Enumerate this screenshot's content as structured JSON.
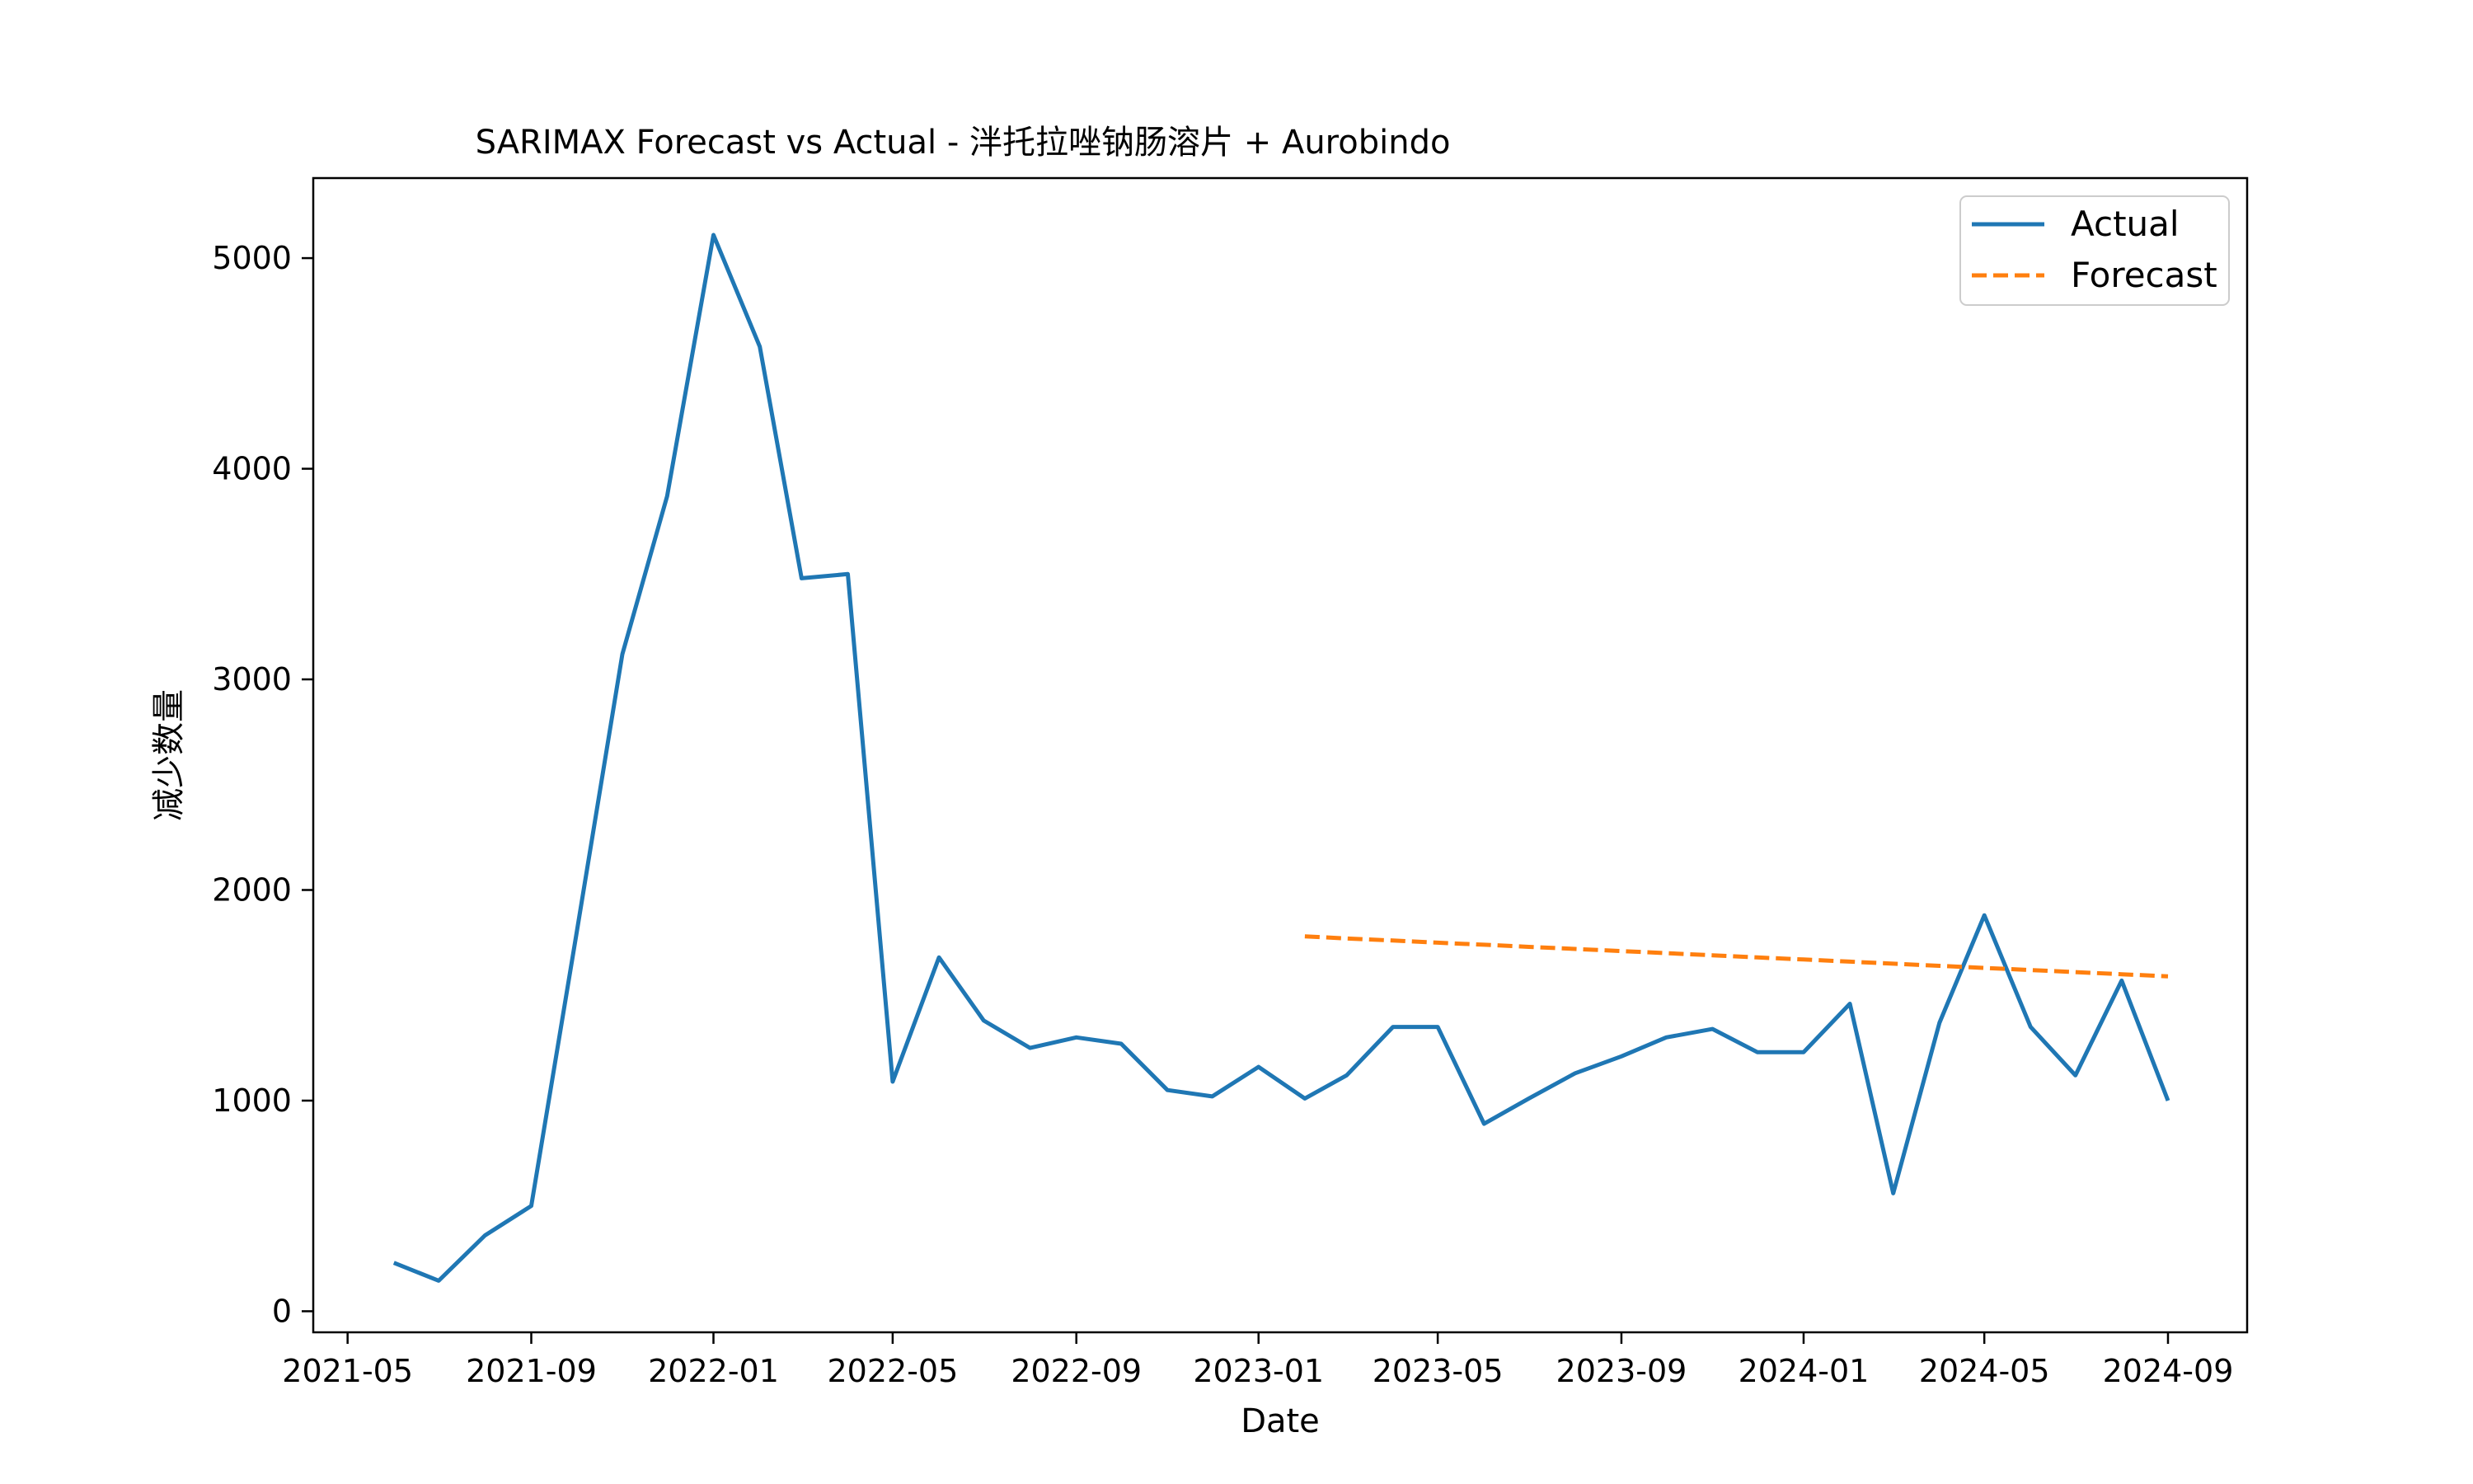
{
  "chart_data": {
    "type": "line",
    "title": "SARIMAX Forecast vs Actual - 泮托拉唑钠肠溶片 + Aurobindo",
    "xlabel": "Date",
    "ylabel": "减少数量",
    "x_ticks": [
      "2021-05",
      "2021-09",
      "2022-01",
      "2022-05",
      "2022-09",
      "2023-01",
      "2023-05",
      "2023-09",
      "2024-01",
      "2024-05",
      "2024-09"
    ],
    "y_ticks": [
      "0",
      "1000",
      "2000",
      "3000",
      "4000",
      "5000"
    ],
    "xlim": [
      "2021-04-08",
      "2024-10-24"
    ],
    "ylim": [
      -100,
      5380
    ],
    "grid": false,
    "legend_position": "upper right",
    "series": [
      {
        "name": "Actual",
        "color": "#1f77b4",
        "style": "solid",
        "x": [
          "2021-06-01",
          "2021-07-01",
          "2021-08-01",
          "2021-09-01",
          "2021-10-01",
          "2021-11-01",
          "2021-12-01",
          "2022-01-01",
          "2022-02-01",
          "2022-03-01",
          "2022-04-01",
          "2022-05-01",
          "2022-06-01",
          "2022-07-01",
          "2022-08-01",
          "2022-09-01",
          "2022-10-01",
          "2022-11-01",
          "2022-12-01",
          "2023-01-01",
          "2023-02-01",
          "2023-03-01",
          "2023-04-01",
          "2023-05-01",
          "2023-06-01",
          "2023-07-01",
          "2023-08-01",
          "2023-09-01",
          "2023-10-01",
          "2023-11-01",
          "2023-12-01",
          "2024-01-01",
          "2024-02-01",
          "2024-03-01",
          "2024-04-01",
          "2024-05-01",
          "2024-06-01",
          "2024-07-01",
          "2024-08-01",
          "2024-09-01"
        ],
        "y": [
          230,
          145,
          360,
          500,
          1780,
          3120,
          3870,
          5110,
          4580,
          3480,
          3500,
          1090,
          1680,
          1380,
          1250,
          1300,
          1270,
          1050,
          1020,
          1160,
          1010,
          1120,
          1350,
          1350,
          890,
          1010,
          1130,
          1210,
          1300,
          1340,
          1230,
          1230,
          1460,
          560,
          1370,
          1880,
          1350,
          1120,
          1570,
          1000
        ]
      },
      {
        "name": "Forecast",
        "color": "#ff7f0e",
        "style": "dashed",
        "x": [
          "2023-02-01",
          "2023-03-01",
          "2023-04-01",
          "2023-05-01",
          "2023-06-01",
          "2023-07-01",
          "2023-08-01",
          "2023-09-01",
          "2023-10-01",
          "2023-11-01",
          "2023-12-01",
          "2024-01-01",
          "2024-02-01",
          "2024-03-01",
          "2024-04-01",
          "2024-05-01",
          "2024-06-01",
          "2024-07-01",
          "2024-08-01",
          "2024-09-01"
        ],
        "y": [
          1780,
          1770,
          1760,
          1750,
          1740,
          1730,
          1720,
          1710,
          1700,
          1690,
          1680,
          1670,
          1660,
          1650,
          1640,
          1630,
          1620,
          1610,
          1600,
          1590
        ]
      }
    ]
  }
}
